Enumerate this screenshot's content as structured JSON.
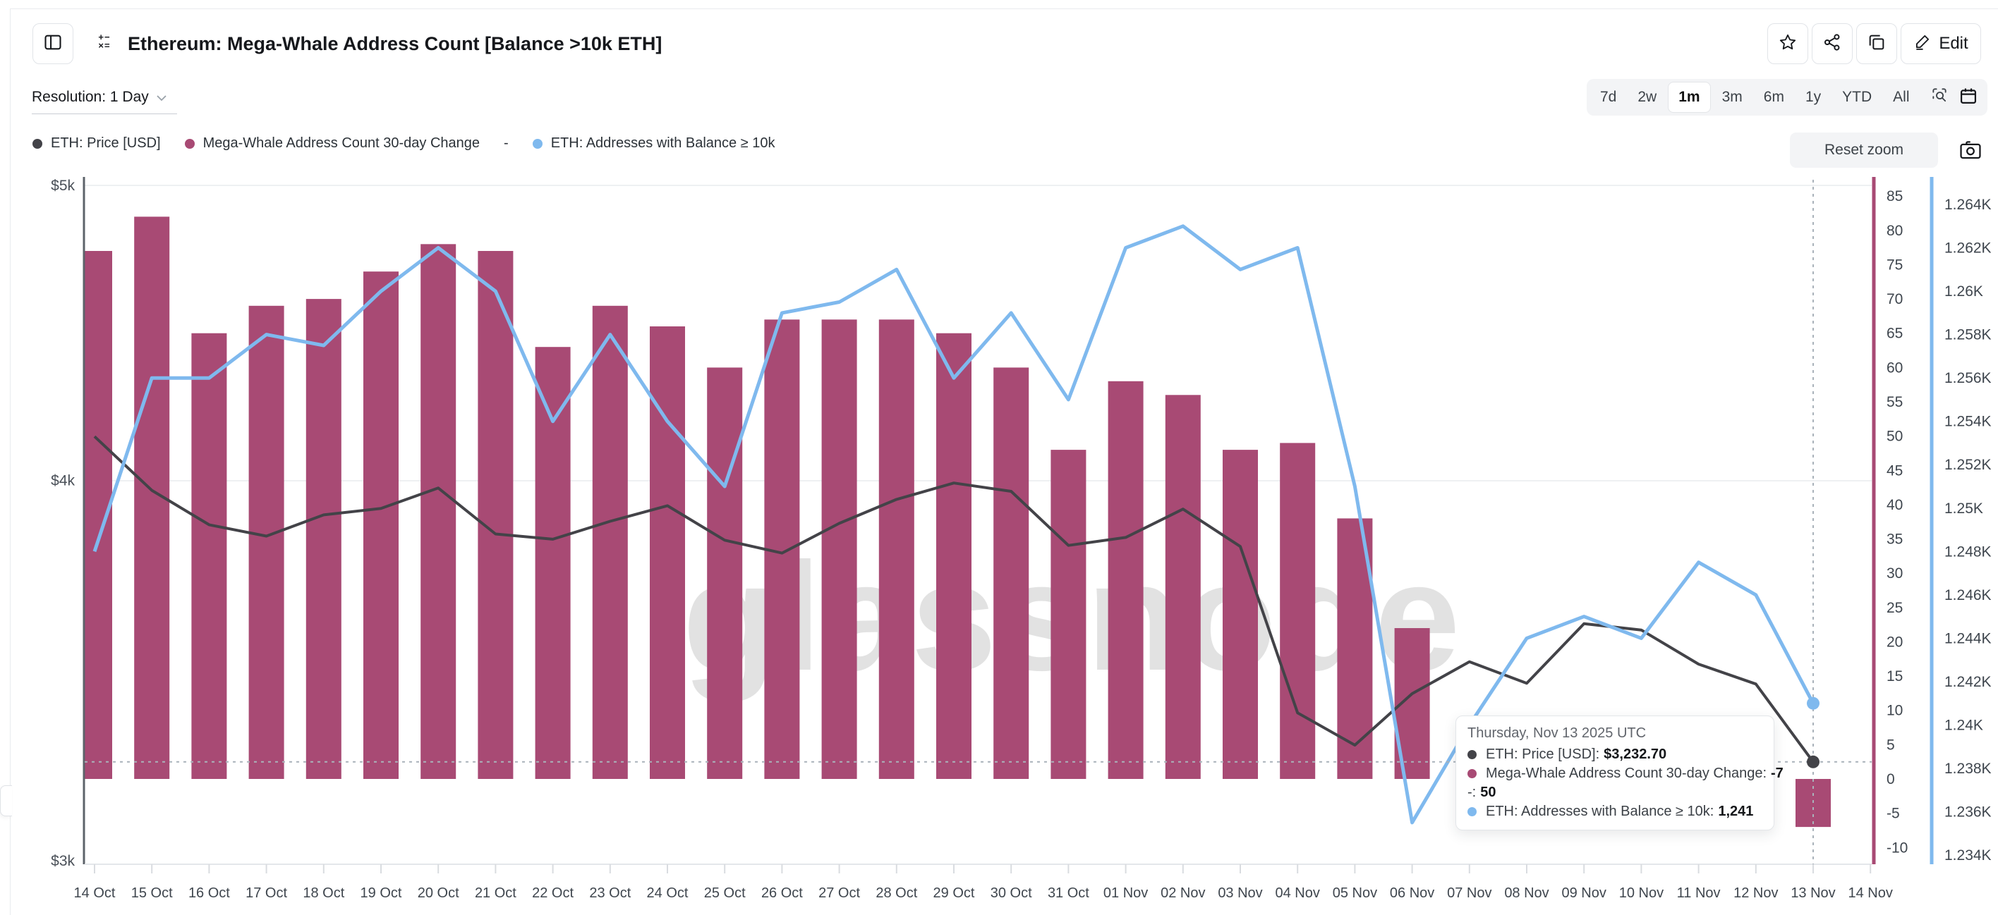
{
  "header": {
    "title": "Ethereum: Mega-Whale Address Count [Balance >10k ETH]",
    "edit_label": "Edit"
  },
  "toolbar": {
    "resolution_label": "Resolution: 1 Day",
    "ranges": [
      "7d",
      "2w",
      "1m",
      "3m",
      "6m",
      "1y",
      "YTD",
      "All"
    ],
    "active_range": "1m",
    "reset_zoom_label": "Reset zoom"
  },
  "legend": {
    "items": [
      {
        "label": "ETH: Price [USD]",
        "color": "#434348"
      },
      {
        "label": "Mega-Whale Address Count 30-day Change",
        "color": "#a84a74"
      },
      {
        "label": "-",
        "color": null
      },
      {
        "label": "ETH: Addresses with Balance ≥ 10k",
        "color": "#7fb9ee"
      }
    ]
  },
  "watermark": "glassnode",
  "tooltip": {
    "title": "Thursday, Nov 13 2025 UTC",
    "rows": [
      {
        "label": "ETH: Price [USD]:",
        "value": "$3,232.70",
        "color": "#434348"
      },
      {
        "label": "Mega-Whale Address Count 30-day Change:",
        "value": "-7",
        "color": "#a84a74"
      },
      {
        "label": "-:",
        "value": "50",
        "color": null
      },
      {
        "label": "ETH: Addresses with Balance ≥ 10k:",
        "value": "1,241",
        "color": "#7fb9ee"
      }
    ]
  },
  "chart_data": {
    "type": "combo",
    "categories": [
      "14 Oct",
      "15 Oct",
      "16 Oct",
      "17 Oct",
      "18 Oct",
      "19 Oct",
      "20 Oct",
      "21 Oct",
      "22 Oct",
      "23 Oct",
      "24 Oct",
      "25 Oct",
      "26 Oct",
      "27 Oct",
      "28 Oct",
      "29 Oct",
      "30 Oct",
      "31 Oct",
      "01 Nov",
      "02 Nov",
      "03 Nov",
      "04 Nov",
      "05 Nov",
      "06 Nov",
      "07 Nov",
      "08 Nov",
      "09 Nov",
      "10 Nov",
      "11 Nov",
      "12 Nov",
      "13 Nov"
    ],
    "x_tick_labels": [
      "14 Oct",
      "15 Oct",
      "16 Oct",
      "17 Oct",
      "18 Oct",
      "19 Oct",
      "20 Oct",
      "21 Oct",
      "22 Oct",
      "23 Oct",
      "24 Oct",
      "25 Oct",
      "26 Oct",
      "27 Oct",
      "28 Oct",
      "29 Oct",
      "30 Oct",
      "31 Oct",
      "01 Nov",
      "02 Nov",
      "03 Nov",
      "04 Nov",
      "05 Nov",
      "06 Nov",
      "07 Nov",
      "08 Nov",
      "09 Nov",
      "10 Nov",
      "11 Nov",
      "12 Nov",
      "13 Nov",
      "14 Nov"
    ],
    "series": [
      {
        "name": "ETH: Price [USD]",
        "type": "line",
        "axis": "left_price_usd",
        "scale": "log",
        "color": "#434348",
        "values": [
          4135,
          3970,
          3868,
          3835,
          3897,
          3916,
          3977,
          3841,
          3826,
          3878,
          3924,
          3823,
          3786,
          3872,
          3943,
          3992,
          3967,
          3808,
          3831,
          3914,
          3805,
          3355,
          3274,
          3404,
          3487,
          3431,
          3589,
          3572,
          3481,
          3429,
          3232.7
        ]
      },
      {
        "name": "Mega-Whale Address Count 30-day Change",
        "type": "column",
        "axis": "right_count_change",
        "color": "#a84a74",
        "values": [
          77,
          82,
          65,
          69,
          70,
          74,
          78,
          77,
          63,
          69,
          66,
          60,
          67,
          67,
          67,
          65,
          60,
          48,
          58,
          56,
          48,
          49,
          38,
          22,
          0,
          -7,
          0,
          0,
          0,
          0,
          -7
        ]
      },
      {
        "name": "-",
        "type": "hidden",
        "constant_value": 50
      },
      {
        "name": "ETH: Addresses with Balance ≥ 10k",
        "type": "line",
        "axis": "far_right_addresses",
        "color": "#7fb9ee",
        "values": [
          1248,
          1256,
          1256,
          1258,
          1257.5,
          1260,
          1262,
          1260,
          1254,
          1258,
          1254,
          1251,
          1259,
          1259.5,
          1261,
          1256,
          1259,
          1255,
          1262,
          1263,
          1261,
          1262,
          1251,
          1235.5,
          1240,
          1244,
          1245,
          1244,
          1247.5,
          1246,
          1241
        ]
      }
    ],
    "axes": {
      "left_price_usd": {
        "tick_labels": [
          "$5k",
          "$4k",
          "$3k"
        ],
        "tick_values": [
          5000,
          4000,
          3000
        ],
        "scale": "log"
      },
      "right_count_change": {
        "tick_values": [
          85,
          80,
          75,
          70,
          65,
          60,
          55,
          50,
          45,
          40,
          35,
          30,
          25,
          20,
          15,
          10,
          5,
          0,
          -5,
          -10
        ],
        "color": "#a84a74"
      },
      "far_right_addresses": {
        "tick_labels": [
          "1.264K",
          "1.262K",
          "1.26K",
          "1.258K",
          "1.256K",
          "1.254K",
          "1.252K",
          "1.25K",
          "1.248K",
          "1.246K",
          "1.244K",
          "1.242K",
          "1.24K",
          "1.238K",
          "1.236K",
          "1.234K"
        ],
        "tick_values": [
          1264,
          1262,
          1260,
          1258,
          1256,
          1254,
          1252,
          1250,
          1248,
          1246,
          1244,
          1242,
          1240,
          1238,
          1236,
          1234
        ],
        "color": "#7fb9ee"
      }
    },
    "crosshair": {
      "x_label": "13 Nov",
      "x_index": 30,
      "price": 3232.7,
      "addresses": 1241
    },
    "grid": "horizontal-faint",
    "legend_position": "top-left"
  }
}
